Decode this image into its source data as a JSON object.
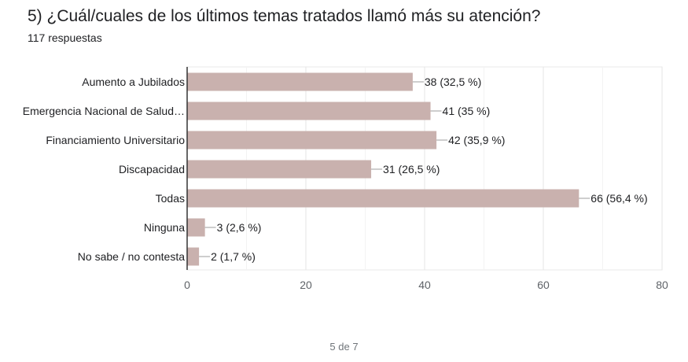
{
  "question": {
    "title": "5)   ¿Cuál/cuales de los últimos temas tratados llamó más su atención?",
    "responses": "117 respuestas"
  },
  "chart_data": {
    "type": "bar",
    "orientation": "horizontal",
    "categories": [
      "Aumento a Jubilados",
      "Emergencia Nacional de Salud…",
      "Financiamiento Universitario",
      "Discapacidad",
      "Todas",
      "Ninguna",
      "No sabe / no contesta"
    ],
    "values": [
      38,
      41,
      42,
      31,
      66,
      3,
      2
    ],
    "labels": [
      "38 (32,5 %)",
      "41 (35 %)",
      "42 (35,9 %)",
      "31 (26,5 %)",
      "66 (56,4 %)",
      "3 (2,6 %)",
      "2 (1,7 %)"
    ],
    "xlim": [
      0,
      80
    ],
    "xticks": [
      0,
      20,
      40,
      60,
      80
    ],
    "grid": true,
    "bar_color": "#c9b1ae"
  },
  "footer": {
    "page": "5 de 7"
  }
}
